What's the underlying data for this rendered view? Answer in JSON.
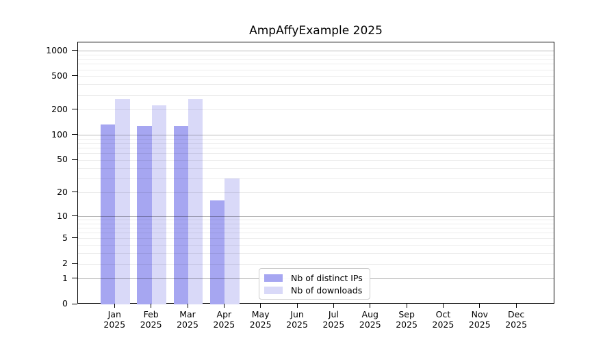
{
  "title": "AmpAffyExample 2025",
  "chart_data": {
    "type": "bar",
    "title": "AmpAffyExample 2025",
    "categories": [
      "Jan",
      "Feb",
      "Mar",
      "Apr",
      "May",
      "Jun",
      "Jul",
      "Aug",
      "Sep",
      "Oct",
      "Nov",
      "Dec"
    ],
    "x_tick_year": "2025",
    "series": [
      {
        "name": "Nb of distinct IPs",
        "color": "#a6a6f1",
        "values": [
          135,
          129,
          129,
          16,
          null,
          null,
          null,
          null,
          null,
          null,
          null,
          null
        ]
      },
      {
        "name": "Nb of downloads",
        "color": "#d9d9f8",
        "values": [
          270,
          227,
          267,
          30,
          null,
          null,
          null,
          null,
          null,
          null,
          null,
          null
        ]
      }
    ],
    "xlabel": "",
    "ylabel": "",
    "yscale": "log1p",
    "yticks": [
      0,
      1,
      2,
      5,
      10,
      20,
      50,
      100,
      200,
      500,
      1000
    ],
    "ylim": [
      0,
      1270
    ],
    "grid": {
      "horizontal": true,
      "minor_lines": true,
      "major_values": [
        1,
        10,
        100,
        1000
      ]
    },
    "legend_position": "inside bottom, left of center"
  },
  "legend": {
    "items": [
      {
        "label": "Nb of distinct IPs",
        "color": "#a6a6f1"
      },
      {
        "label": "Nb of downloads",
        "color": "#d9d9f8"
      }
    ]
  }
}
